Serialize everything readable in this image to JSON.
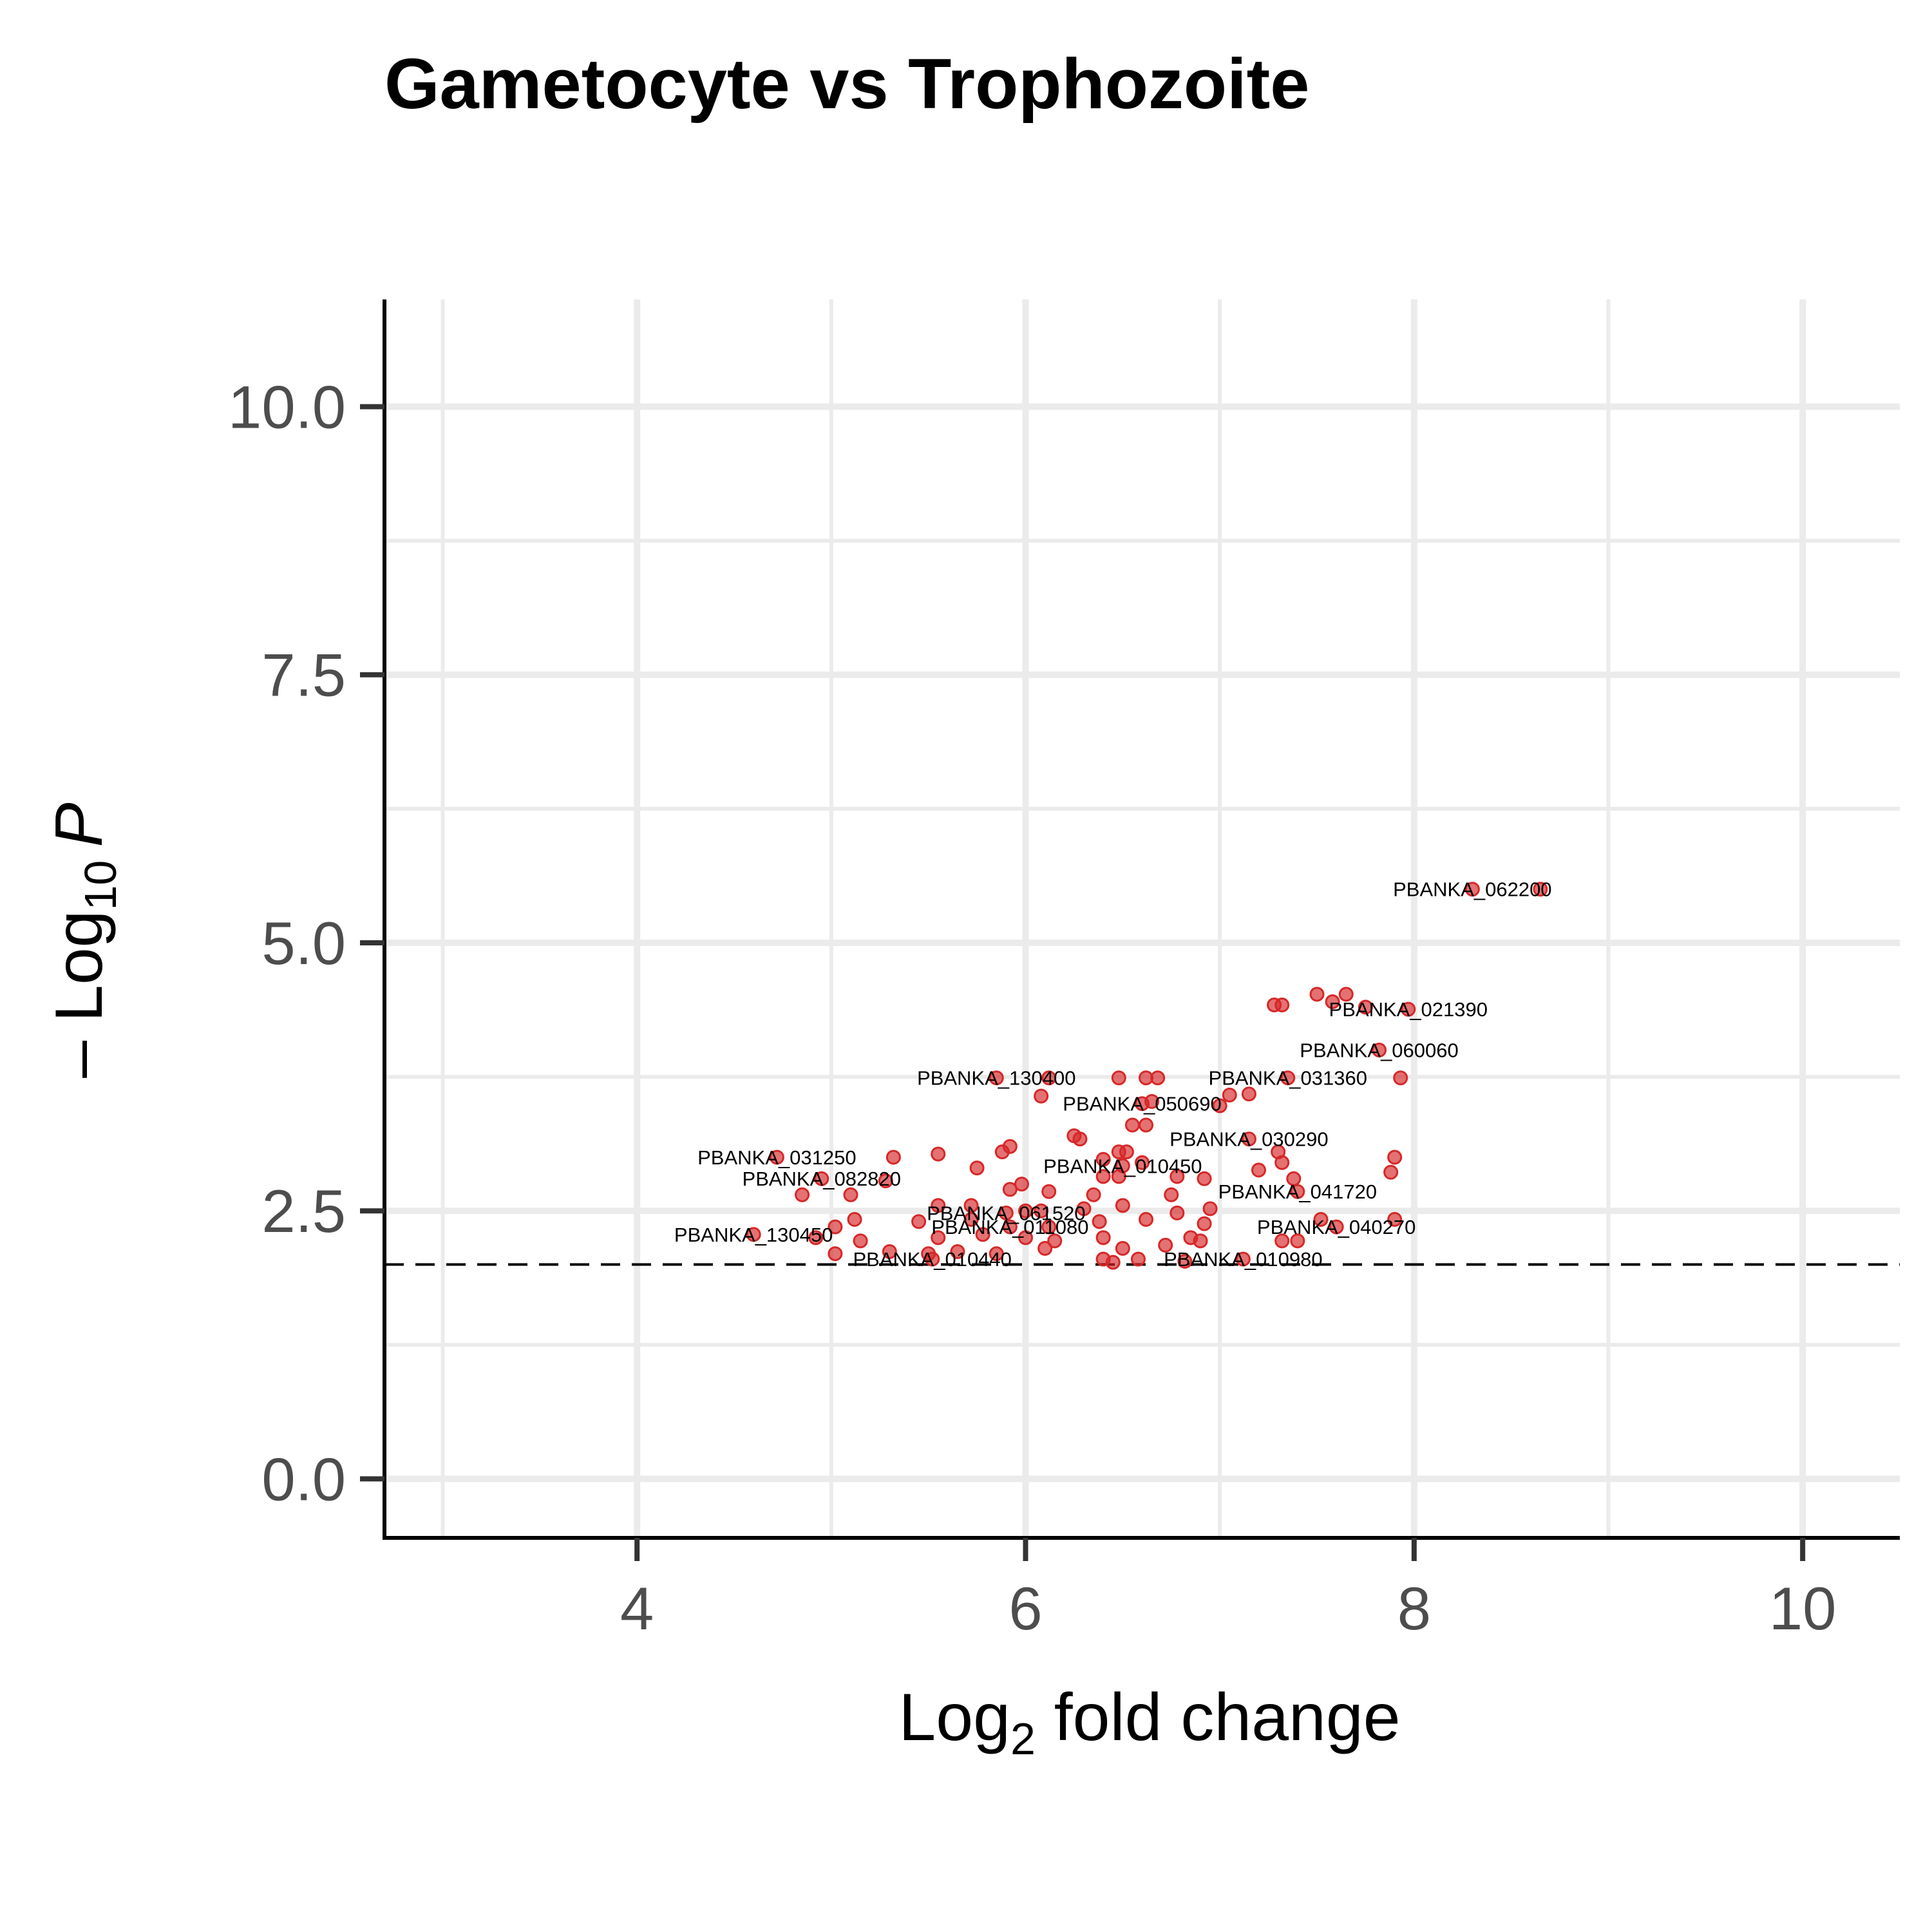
{
  "chart_data": {
    "type": "scatter",
    "title": "Gametocyte vs Trophozoite",
    "xlabel": {
      "main": "Log",
      "sub": "2",
      "rest": " fold change"
    },
    "ylabel": {
      "pre": "– Log",
      "sub": "10",
      "italic": "P"
    },
    "xlim": [
      2.7,
      10.5
    ],
    "ylim": [
      -0.55,
      11.0
    ],
    "x_ticks": [
      4,
      6,
      8,
      10
    ],
    "x_tick_labels": [
      "4",
      "6",
      "8",
      "10"
    ],
    "y_ticks": [
      0,
      2.5,
      5,
      7.5,
      10
    ],
    "y_tick_labels": [
      "0.0",
      "2.5",
      "5.0",
      "7.5",
      "10.0"
    ],
    "x_minor": [
      3,
      5,
      7,
      9
    ],
    "y_minor": [
      1.25,
      3.75,
      6.25,
      8.75
    ],
    "grid": true,
    "threshold_y": 2.0,
    "point_color": "#d62728",
    "points": [
      [
        8.3,
        5.5
      ],
      [
        8.65,
        5.5
      ],
      [
        7.28,
        4.42
      ],
      [
        7.32,
        4.42
      ],
      [
        7.5,
        4.52
      ],
      [
        7.58,
        4.45
      ],
      [
        7.65,
        4.52
      ],
      [
        7.75,
        4.4
      ],
      [
        7.97,
        4.38
      ],
      [
        7.82,
        4.0
      ],
      [
        5.85,
        3.74
      ],
      [
        6.12,
        3.74
      ],
      [
        6.48,
        3.74
      ],
      [
        6.62,
        3.74
      ],
      [
        6.68,
        3.74
      ],
      [
        7.35,
        3.74
      ],
      [
        7.93,
        3.74
      ],
      [
        6.08,
        3.57
      ],
      [
        7.05,
        3.58
      ],
      [
        7.15,
        3.59
      ],
      [
        6.6,
        3.5
      ],
      [
        6.65,
        3.52
      ],
      [
        7.0,
        3.48
      ],
      [
        6.55,
        3.3
      ],
      [
        6.62,
        3.3
      ],
      [
        6.25,
        3.2
      ],
      [
        6.28,
        3.17
      ],
      [
        7.15,
        3.17
      ],
      [
        5.88,
        3.05
      ],
      [
        5.92,
        3.1
      ],
      [
        6.48,
        3.05
      ],
      [
        6.52,
        3.05
      ],
      [
        7.3,
        3.05
      ],
      [
        4.72,
        3.0
      ],
      [
        5.32,
        3.0
      ],
      [
        5.55,
        3.03
      ],
      [
        6.4,
        2.98
      ],
      [
        7.32,
        2.95
      ],
      [
        7.9,
        3.0
      ],
      [
        5.75,
        2.9
      ],
      [
        6.5,
        2.92
      ],
      [
        6.6,
        2.95
      ],
      [
        7.2,
        2.88
      ],
      [
        7.88,
        2.86
      ],
      [
        4.95,
        2.8
      ],
      [
        5.28,
        2.78
      ],
      [
        6.4,
        2.82
      ],
      [
        6.48,
        2.82
      ],
      [
        6.78,
        2.82
      ],
      [
        6.92,
        2.8
      ],
      [
        7.38,
        2.8
      ],
      [
        4.85,
        2.65
      ],
      [
        5.1,
        2.65
      ],
      [
        5.92,
        2.7
      ],
      [
        5.98,
        2.75
      ],
      [
        6.12,
        2.68
      ],
      [
        6.35,
        2.65
      ],
      [
        6.75,
        2.65
      ],
      [
        7.4,
        2.68
      ],
      [
        5.55,
        2.55
      ],
      [
        5.72,
        2.55
      ],
      [
        5.9,
        2.48
      ],
      [
        6.0,
        2.5
      ],
      [
        6.08,
        2.5
      ],
      [
        6.3,
        2.52
      ],
      [
        6.5,
        2.55
      ],
      [
        6.78,
        2.48
      ],
      [
        6.95,
        2.52
      ],
      [
        5.02,
        2.35
      ],
      [
        5.12,
        2.42
      ],
      [
        5.45,
        2.4
      ],
      [
        5.72,
        2.42
      ],
      [
        5.92,
        2.35
      ],
      [
        6.12,
        2.35
      ],
      [
        6.38,
        2.4
      ],
      [
        6.62,
        2.42
      ],
      [
        6.92,
        2.38
      ],
      [
        7.52,
        2.42
      ],
      [
        7.6,
        2.35
      ],
      [
        7.9,
        2.42
      ],
      [
        4.6,
        2.28
      ],
      [
        4.92,
        2.25
      ],
      [
        5.15,
        2.22
      ],
      [
        5.55,
        2.25
      ],
      [
        5.78,
        2.28
      ],
      [
        6.0,
        2.25
      ],
      [
        6.15,
        2.22
      ],
      [
        6.4,
        2.25
      ],
      [
        6.85,
        2.25
      ],
      [
        6.9,
        2.22
      ],
      [
        7.32,
        2.22
      ],
      [
        7.4,
        2.22
      ],
      [
        5.02,
        2.1
      ],
      [
        5.3,
        2.12
      ],
      [
        5.5,
        2.1
      ],
      [
        5.65,
        2.12
      ],
      [
        5.85,
        2.1
      ],
      [
        6.1,
        2.15
      ],
      [
        6.5,
        2.15
      ],
      [
        6.72,
        2.18
      ],
      [
        5.52,
        2.05
      ],
      [
        6.4,
        2.05
      ],
      [
        6.45,
        2.02
      ],
      [
        6.58,
        2.05
      ],
      [
        6.82,
        2.03
      ],
      [
        7.12,
        2.05
      ]
    ],
    "labels": [
      {
        "text": "PBANKA_062200",
        "x": 8.3,
        "y": 5.5
      },
      {
        "text": "PBANKA_021390",
        "x": 7.97,
        "y": 4.38
      },
      {
        "text": "PBANKA_060060",
        "x": 7.82,
        "y": 4.0
      },
      {
        "text": "PBANKA_130400",
        "x": 5.85,
        "y": 3.74
      },
      {
        "text": "PBANKA_031360",
        "x": 7.35,
        "y": 3.74
      },
      {
        "text": "PBANKA_050690",
        "x": 6.6,
        "y": 3.5
      },
      {
        "text": "PBANKA_030290",
        "x": 7.15,
        "y": 3.17
      },
      {
        "text": "PBANKA_031250",
        "x": 4.72,
        "y": 3.0
      },
      {
        "text": "PBANKA_010450",
        "x": 6.5,
        "y": 2.92
      },
      {
        "text": "PBANKA_082820",
        "x": 4.95,
        "y": 2.8
      },
      {
        "text": "PBANKA_041720",
        "x": 7.4,
        "y": 2.68
      },
      {
        "text": "PBANKA_061520",
        "x": 5.9,
        "y": 2.48
      },
      {
        "text": "PBANKA_040270",
        "x": 7.6,
        "y": 2.35
      },
      {
        "text": "PBANKA_011080",
        "x": 5.92,
        "y": 2.35
      },
      {
        "text": "PBANKA_130450",
        "x": 4.6,
        "y": 2.28
      },
      {
        "text": "PBANKA_010440",
        "x": 5.52,
        "y": 2.05
      },
      {
        "text": "PBANKA_010980",
        "x": 7.12,
        "y": 2.05
      }
    ]
  }
}
